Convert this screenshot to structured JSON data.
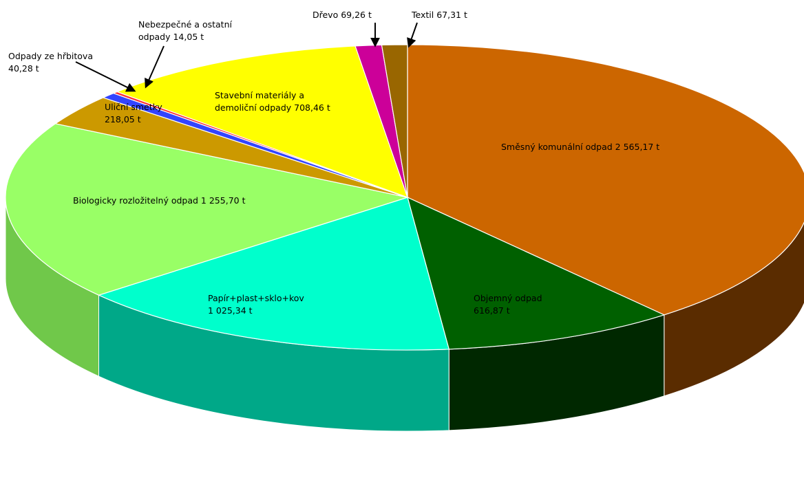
{
  "chart_data": {
    "type": "pie",
    "variant": "3d",
    "unit": "t",
    "title": "",
    "slices": [
      {
        "name": "Směsný komunální  odpad",
        "value": 2565.17,
        "value_label": "2 565,17 t",
        "color": "#CC6600",
        "side_color": "#5A2C00"
      },
      {
        "name": "Objemný odpad",
        "value": 616.87,
        "value_label": "616,87 t",
        "color": "#006000",
        "side_color": "#002800"
      },
      {
        "name": "Papír+plast+sklo+kov",
        "value": 1025.34,
        "value_label": "1 025,34 t",
        "color": "#00FFCC",
        "side_color": "#00A888"
      },
      {
        "name": "Biologicky rozložitelný odpad",
        "value": 1255.7,
        "value_label": "1 255,70 t",
        "color": "#99FF66",
        "side_color": "#70C84A"
      },
      {
        "name": "Uliční smetky",
        "value": 218.05,
        "value_label": "218,05 t",
        "color": "#CC9900",
        "side_color": "#8A6600"
      },
      {
        "name": "Odpady ze hřbitova",
        "value": 40.28,
        "value_label": "40,28 t",
        "color": "#3344FF",
        "side_color": "#1A26A0"
      },
      {
        "name": "Nebezpečné a ostatní odpady",
        "value": 14.05,
        "value_label": "14,05 t",
        "color": "#FF3333",
        "side_color": "#A01A1A"
      },
      {
        "name": "Stavební materiály a demoliční odpady",
        "value": 708.46,
        "value_label": "708,46 t",
        "color": "#FFFF00",
        "side_color": "#B0B000"
      },
      {
        "name": "Dřevo",
        "value": 69.26,
        "value_label": "69,26 t",
        "color": "#CC0099",
        "side_color": "#800060"
      },
      {
        "name": "Textil",
        "value": 67.31,
        "value_label": "67,31 t",
        "color": "#996600",
        "side_color": "#5E3F00"
      }
    ],
    "labels": [
      {
        "lines": [
          "Směsný komunální  odpad 2 565,17 t"
        ],
        "slice": 0,
        "callout": false
      },
      {
        "lines": [
          "Objemný odpad",
          "616,87 t"
        ],
        "slice": 1,
        "callout": false
      },
      {
        "lines": [
          "Papír+plast+sklo+kov",
          "1 025,34 t"
        ],
        "slice": 2,
        "callout": false
      },
      {
        "lines": [
          "Biologicky rozložitelný odpad 1 255,70 t"
        ],
        "slice": 3,
        "callout": false
      },
      {
        "lines": [
          "Uliční smetky",
          "218,05 t"
        ],
        "slice": 4,
        "callout": false
      },
      {
        "lines": [
          "Odpady ze hřbitova",
          "40,28 t"
        ],
        "slice": 5,
        "callout": true
      },
      {
        "lines": [
          "Nebezpečné a ostatní",
          "odpady 14,05 t"
        ],
        "slice": 6,
        "callout": true
      },
      {
        "lines": [
          "Stavební materiály a",
          "demoliční odpady 708,46 t"
        ],
        "slice": 7,
        "callout": false
      },
      {
        "lines": [
          "Dřevo 69,26 t"
        ],
        "slice": 8,
        "callout": true
      },
      {
        "lines": [
          "Textil 67,31 t"
        ],
        "slice": 9,
        "callout": true
      }
    ],
    "legend": "none"
  }
}
